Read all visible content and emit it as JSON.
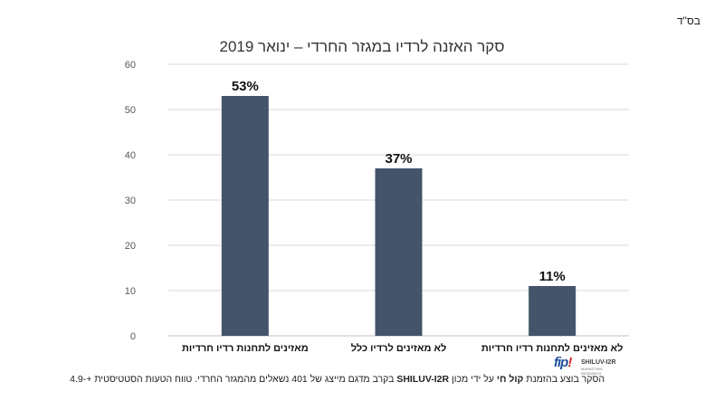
{
  "corner_note": "בס\"ד",
  "chart_data": {
    "type": "bar",
    "title": "סקר האזנה לרדיו במגזר החרדי – ינואר 2019",
    "categories": [
      "מאזינים לתחנות רדיו חרדיות",
      "לא מאזינים לרדיו כלל",
      "לא מאזינים לתחנות רדיו חרדיות"
    ],
    "values": [
      53,
      37,
      11
    ],
    "data_labels": [
      "53%",
      "37%",
      "11%"
    ],
    "ylim": [
      0,
      60
    ],
    "yticks": [
      "0",
      "10",
      "20",
      "30",
      "40",
      "50",
      "60"
    ],
    "grid": true,
    "bar_color": "#44546a",
    "xlabel": "",
    "ylabel": ""
  },
  "footnote": {
    "part1": "הסקר בוצע בהזמנת ",
    "client": "קול חי",
    "part2": " על ידי מכון ",
    "institute": "SHILUV-I2R",
    "part3": " בקרב מדגם מייצג של 401 נשאלים מהמגזר החרדי. טווח הטעות הסטטיסטית +-4.9"
  },
  "logo": {
    "mark_main": "fip",
    "mark_accent": "!",
    "name": "SHILUV-I2R",
    "sub": "MARKETING RESEARCH"
  }
}
